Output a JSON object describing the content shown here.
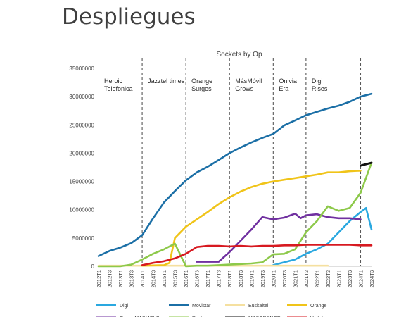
{
  "slide": {
    "title": "Despliegues"
  },
  "chart_data": {
    "type": "line",
    "title": "Sockets by Op",
    "xlabel": "",
    "ylabel": "",
    "ylim": [
      0,
      35000000
    ],
    "y_ticks": [
      "0",
      "5000000",
      "10000000",
      "15000000",
      "20000000",
      "25000000",
      "30000000",
      "35000000"
    ],
    "x_ticks": [
      "2012T1",
      "2012T3",
      "2013T1",
      "2013T3",
      "2014T1",
      "2014T3",
      "2015T1",
      "2015T3",
      "2016T1",
      "2016T3",
      "2017T1",
      "2017T3",
      "2018T1",
      "2018T3",
      "2019T1",
      "2019T3",
      "2020T1",
      "2020T3",
      "2021T1",
      "2021T3",
      "2022T1",
      "2022T3",
      "2023T1",
      "2023T3",
      "2024T1",
      "2024T3"
    ],
    "grid": false,
    "legend_position": "bottom",
    "eras": [
      {
        "label_lines": [
          "Heroic",
          "Telefonica"
        ],
        "start": "2012T1"
      },
      {
        "label_lines": [
          "Jazztel times"
        ],
        "start": "2014T1"
      },
      {
        "label_lines": [
          "Orange",
          "Surges"
        ],
        "start": "2016T1"
      },
      {
        "label_lines": [
          "MásMóvil",
          "Grows"
        ],
        "start": "2018T1"
      },
      {
        "label_lines": [
          "Onivia",
          "Era"
        ],
        "start": "2020T1"
      },
      {
        "label_lines": [
          "Digi",
          "Rises"
        ],
        "start": "2021T3"
      }
    ],
    "era_dividers": [
      "2014T1",
      "2016T1",
      "2018T1",
      "2020T1",
      "2021T3",
      "2024T1"
    ],
    "series": [
      {
        "name": "Digi",
        "color": "#2aa8e0",
        "points": [
          [
            "2020T1",
            200000
          ],
          [
            "2020T3",
            700000
          ],
          [
            "2021T1",
            1200000
          ],
          [
            "2021T3",
            2200000
          ],
          [
            "2022T1",
            3000000
          ],
          [
            "2022T3",
            4000000
          ],
          [
            "2023T1",
            6000000
          ],
          [
            "2023T3",
            8000000
          ],
          [
            "2024T1",
            9600000
          ],
          [
            "2024T2",
            10300000
          ],
          [
            "2024T3",
            6500000
          ]
        ]
      },
      {
        "name": "Movistar",
        "color": "#1b6fa6",
        "points": [
          [
            "2012T1",
            1800000
          ],
          [
            "2012T3",
            2700000
          ],
          [
            "2013T1",
            3300000
          ],
          [
            "2013T3",
            4100000
          ],
          [
            "2014T1",
            5500000
          ],
          [
            "2014T3",
            8500000
          ],
          [
            "2015T1",
            11300000
          ],
          [
            "2015T3",
            13300000
          ],
          [
            "2016T1",
            15200000
          ],
          [
            "2016T3",
            16600000
          ],
          [
            "2017T1",
            17600000
          ],
          [
            "2017T3",
            18800000
          ],
          [
            "2018T1",
            20000000
          ],
          [
            "2018T3",
            21000000
          ],
          [
            "2019T1",
            21900000
          ],
          [
            "2019T3",
            22700000
          ],
          [
            "2020T1",
            23400000
          ],
          [
            "2020T3",
            24900000
          ],
          [
            "2021T1",
            25800000
          ],
          [
            "2021T3",
            26700000
          ],
          [
            "2022T1",
            27300000
          ],
          [
            "2022T3",
            27900000
          ],
          [
            "2023T1",
            28400000
          ],
          [
            "2023T3",
            29100000
          ],
          [
            "2024T1",
            30000000
          ],
          [
            "2024T3",
            30500000
          ]
        ]
      },
      {
        "name": "Euskaltel",
        "color": "#f5e0a0",
        "points": [
          [
            "2012T1",
            100000
          ],
          [
            "2013T1",
            100000
          ],
          [
            "2014T1",
            100000
          ],
          [
            "2015T1",
            100000
          ],
          [
            "2016T1",
            100000
          ],
          [
            "2017T1",
            100000
          ],
          [
            "2018T1",
            100000
          ],
          [
            "2019T1",
            100000
          ],
          [
            "2020T1",
            100000
          ],
          [
            "2021T1",
            100000
          ],
          [
            "2022T1",
            100000
          ],
          [
            "2022T3",
            100000
          ]
        ]
      },
      {
        "name": "Orange",
        "color": "#f0c419",
        "points": [
          [
            "2014T1",
            100000
          ],
          [
            "2015T1",
            200000
          ],
          [
            "2015T2",
            600000
          ],
          [
            "2015T3",
            5000000
          ],
          [
            "2016T1",
            7000000
          ],
          [
            "2016T3",
            8300000
          ],
          [
            "2017T1",
            9600000
          ],
          [
            "2017T3",
            11000000
          ],
          [
            "2018T1",
            12200000
          ],
          [
            "2018T3",
            13200000
          ],
          [
            "2019T1",
            14000000
          ],
          [
            "2019T3",
            14600000
          ],
          [
            "2020T1",
            15000000
          ],
          [
            "2020T3",
            15300000
          ],
          [
            "2021T1",
            15600000
          ],
          [
            "2021T3",
            15900000
          ],
          [
            "2022T1",
            16200000
          ],
          [
            "2022T3",
            16600000
          ],
          [
            "2023T1",
            16600000
          ],
          [
            "2023T3",
            16800000
          ],
          [
            "2024T1",
            16900000
          ]
        ]
      },
      {
        "name": "Grupo MASMOVIL",
        "color": "#7030a0",
        "points": [
          [
            "2016T3",
            800000
          ],
          [
            "2017T1",
            800000
          ],
          [
            "2017T3",
            800000
          ],
          [
            "2018T1",
            2500000
          ],
          [
            "2018T3",
            4500000
          ],
          [
            "2019T1",
            6500000
          ],
          [
            "2019T3",
            8700000
          ],
          [
            "2020T1",
            8300000
          ],
          [
            "2020T3",
            8600000
          ],
          [
            "2021T1",
            9300000
          ],
          [
            "2021T2",
            8500000
          ],
          [
            "2021T3",
            9000000
          ],
          [
            "2022T1",
            9200000
          ],
          [
            "2022T3",
            8700000
          ],
          [
            "2023T1",
            8500000
          ],
          [
            "2023T3",
            8500000
          ],
          [
            "2024T1",
            8300000
          ]
        ]
      },
      {
        "name": "Resto",
        "color": "#8dc94a",
        "points": [
          [
            "2012T1",
            0
          ],
          [
            "2013T1",
            0
          ],
          [
            "2013T3",
            300000
          ],
          [
            "2014T1",
            1200000
          ],
          [
            "2014T3",
            2200000
          ],
          [
            "2015T1",
            3000000
          ],
          [
            "2015T3",
            4000000
          ],
          [
            "2016T1",
            0
          ],
          [
            "2016T3",
            100000
          ],
          [
            "2017T1",
            100000
          ],
          [
            "2017T3",
            200000
          ],
          [
            "2018T1",
            300000
          ],
          [
            "2018T3",
            400000
          ],
          [
            "2019T1",
            500000
          ],
          [
            "2019T3",
            700000
          ],
          [
            "2020T1",
            2100000
          ],
          [
            "2020T3",
            2200000
          ],
          [
            "2021T1",
            3000000
          ],
          [
            "2021T3",
            6000000
          ],
          [
            "2022T1",
            8000000
          ],
          [
            "2022T3",
            10600000
          ],
          [
            "2023T1",
            9800000
          ],
          [
            "2023T3",
            10300000
          ],
          [
            "2024T1",
            13000000
          ],
          [
            "2024T3",
            18300000
          ]
        ]
      },
      {
        "name": "MASORANGE",
        "color": "#111111",
        "points": [
          [
            "2024T1",
            17800000
          ],
          [
            "2024T3",
            18300000
          ]
        ]
      },
      {
        "name": "Vodafone",
        "color": "#d71920",
        "points": [
          [
            "2014T1",
            200000
          ],
          [
            "2014T3",
            600000
          ],
          [
            "2015T1",
            900000
          ],
          [
            "2015T3",
            1400000
          ],
          [
            "2016T1",
            2200000
          ],
          [
            "2016T3",
            3400000
          ],
          [
            "2017T1",
            3600000
          ],
          [
            "2017T3",
            3600000
          ],
          [
            "2018T1",
            3500000
          ],
          [
            "2018T3",
            3600000
          ],
          [
            "2019T1",
            3500000
          ],
          [
            "2019T3",
            3600000
          ],
          [
            "2020T1",
            3600000
          ],
          [
            "2020T3",
            3700000
          ],
          [
            "2021T1",
            3700000
          ],
          [
            "2021T3",
            3800000
          ],
          [
            "2022T1",
            3800000
          ],
          [
            "2022T3",
            3800000
          ],
          [
            "2023T1",
            3800000
          ],
          [
            "2023T3",
            3800000
          ],
          [
            "2024T1",
            3700000
          ],
          [
            "2024T3",
            3700000
          ]
        ]
      }
    ]
  }
}
